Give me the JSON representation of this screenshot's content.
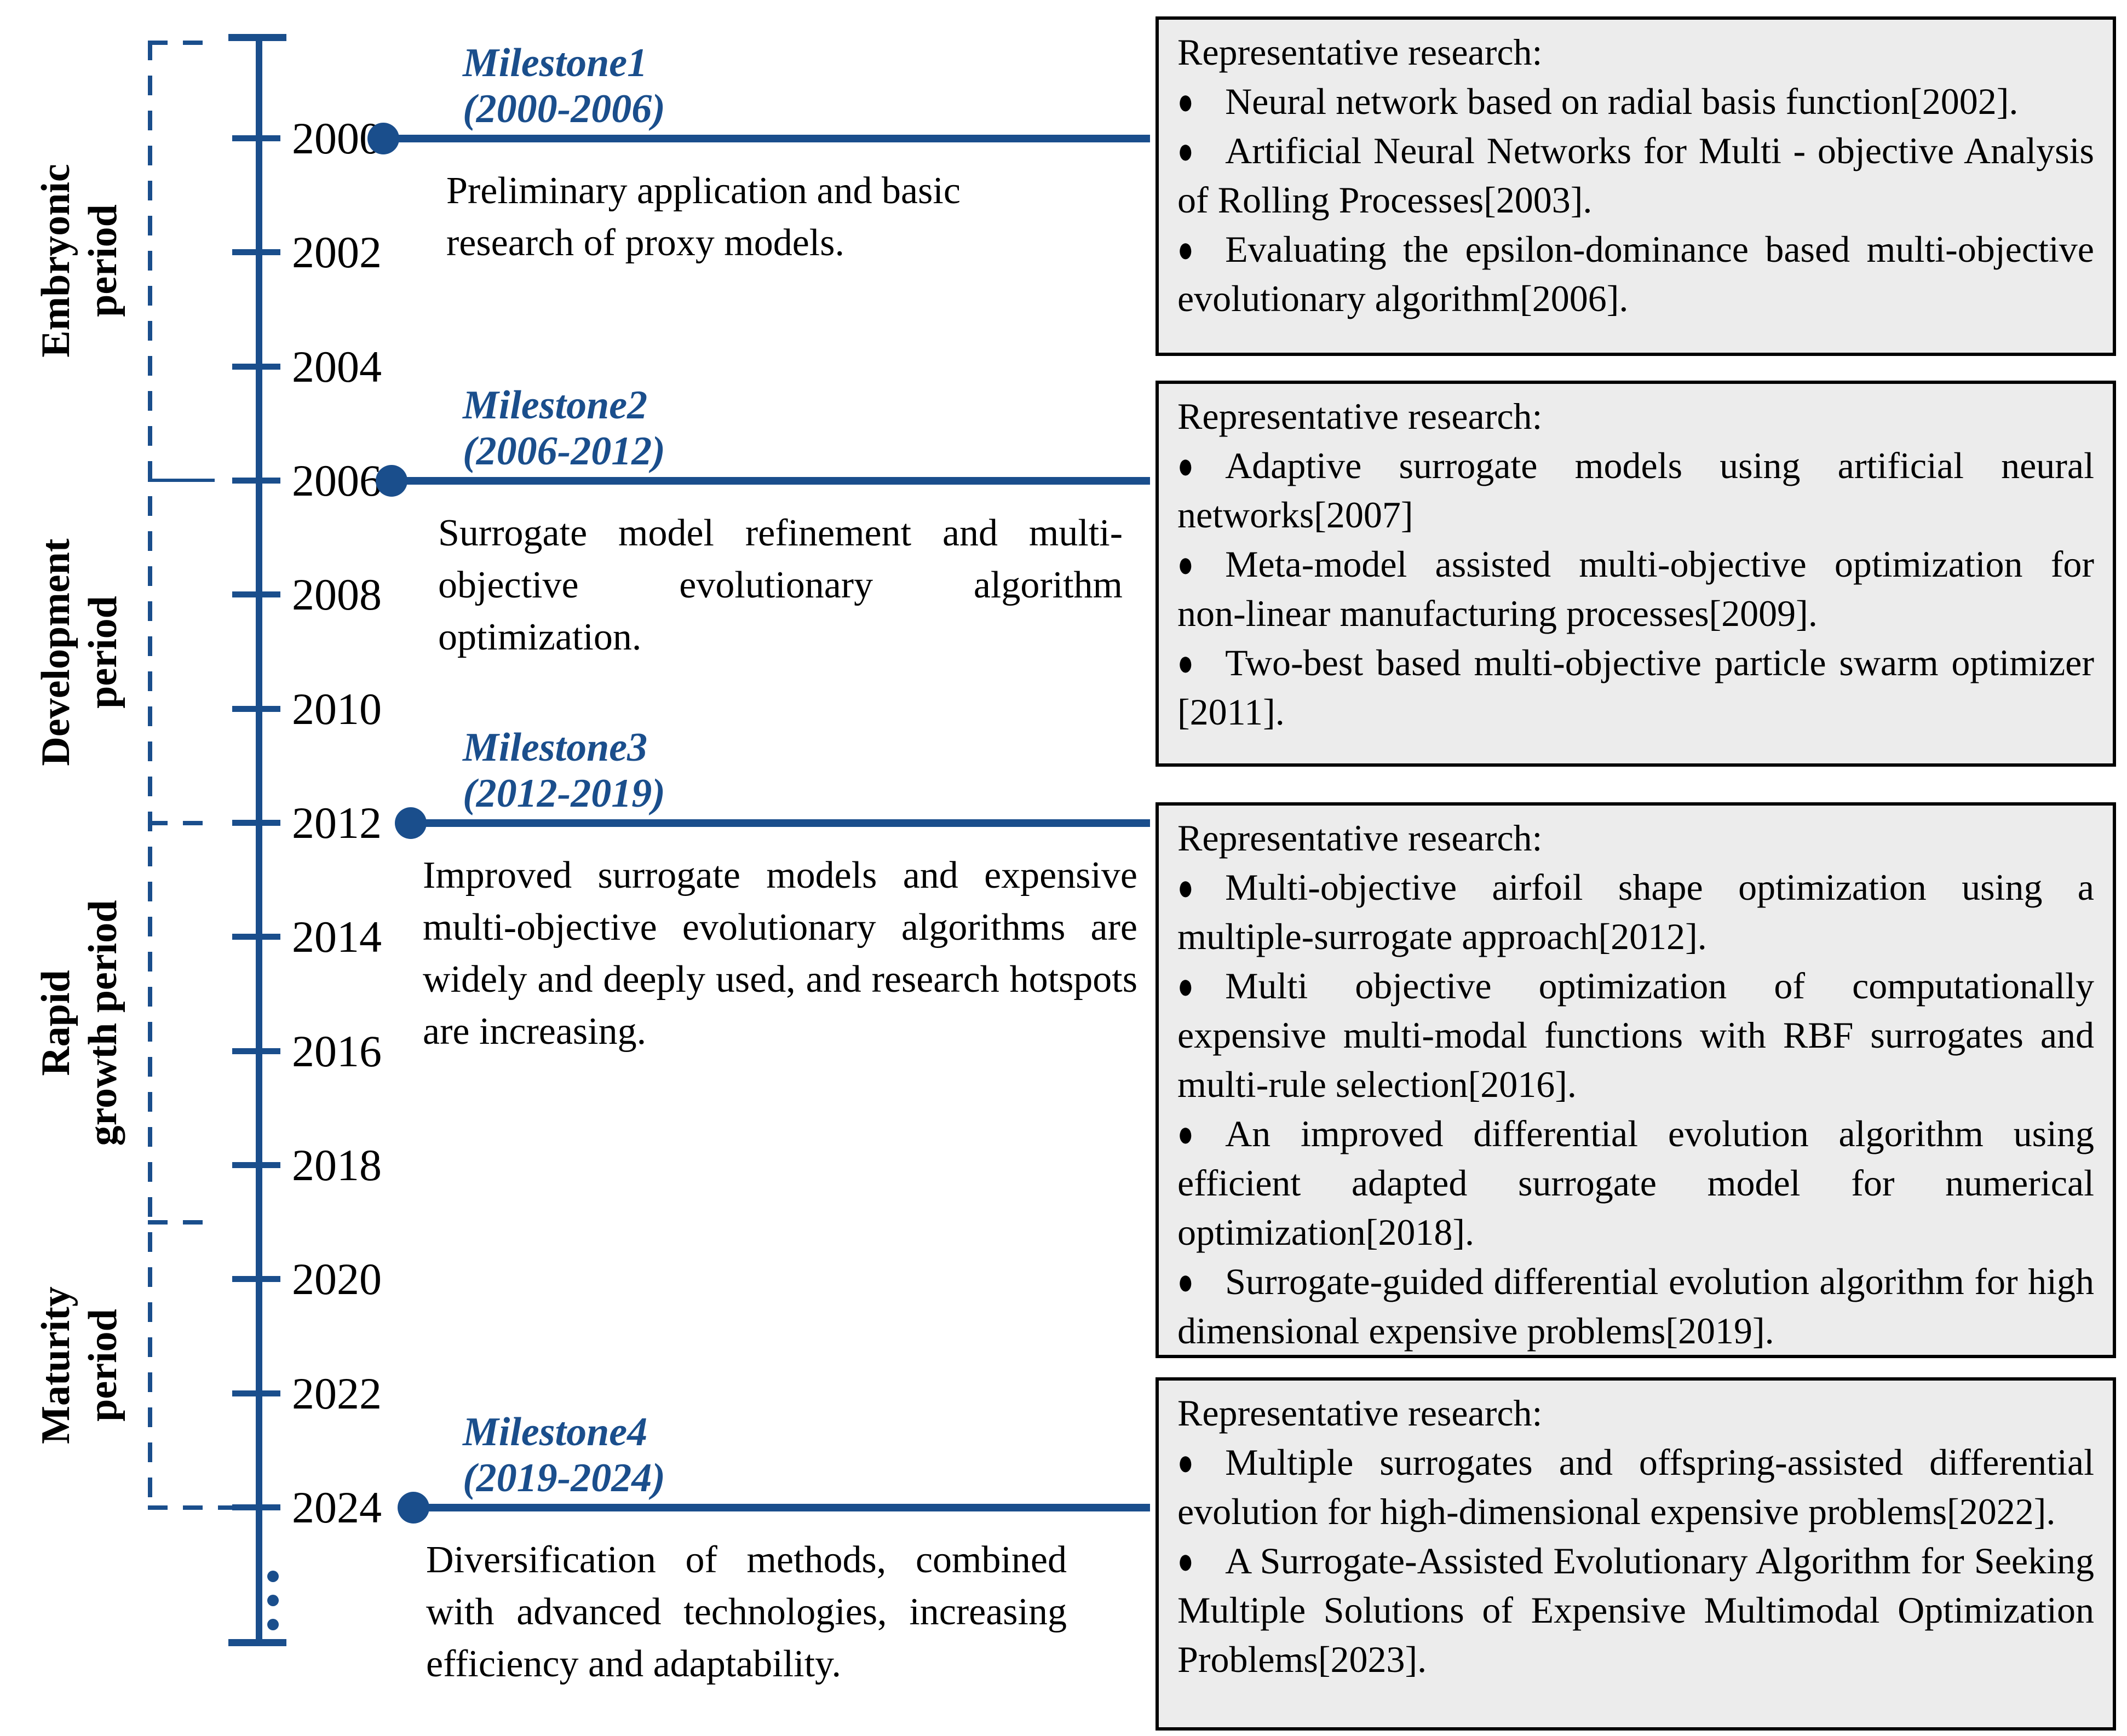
{
  "colors": {
    "accent": "#1a4e8c",
    "box_background": "#ececec",
    "box_border": "#000000",
    "text": "#000000"
  },
  "timeline": {
    "years": [
      "2000",
      "2002",
      "2004",
      "2006",
      "2008",
      "2010",
      "2012",
      "2014",
      "2016",
      "2018",
      "2020",
      "2022",
      "2024"
    ]
  },
  "periods": [
    {
      "line1": "Embryonic",
      "line2": "period",
      "start_year": 2000,
      "end_year": 2006
    },
    {
      "line1": "Development",
      "line2": "period",
      "start_year": 2006,
      "end_year": 2012
    },
    {
      "line1": "Rapid",
      "line2": "growth period",
      "start_year": 2012,
      "end_year": 2019
    },
    {
      "line1": "Maturity",
      "line2": "period",
      "start_year": 2019,
      "end_year": 2024
    }
  ],
  "milestones": [
    {
      "title": "Milestone1",
      "range": "(2000-2006)",
      "year": 2000,
      "description": "Preliminary application and basic research of proxy models."
    },
    {
      "title": "Milestone2",
      "range": "(2006-2012)",
      "year": 2006,
      "description": "Surrogate model refinement and multi-objective evolutionary algorithm optimization."
    },
    {
      "title": "Milestone3",
      "range": "(2012-2019)",
      "year": 2012,
      "description": "Improved surrogate models and expensive multi-objective evolutionary algorithms are widely and deeply used, and research hotspots are increasing."
    },
    {
      "title": "Milestone4",
      "range": "(2019-2024)",
      "year": 2024,
      "description": "Diversification of methods, combined with advanced technologies, increasing efficiency and adaptability."
    }
  ],
  "boxes": [
    {
      "heading": "Representative research:",
      "items": [
        "Neural network based on radial basis function[2002].",
        "Artificial Neural Networks for Multi - objective Analysis of Rolling Processes[2003].",
        "Evaluating the epsilon-dominance based multi-objective evolutionary algorithm[2006]."
      ]
    },
    {
      "heading": "Representative research:",
      "items": [
        "Adaptive surrogate models using artificial neural networks[2007]",
        "Meta-model assisted multi-objective optimization for non-linear manufacturing processes[2009].",
        "Two-best based multi-objective particle swarm optimizer [2011]."
      ]
    },
    {
      "heading": "Representative research:",
      "items": [
        "Multi-objective airfoil shape optimization using a multiple-surrogate approach[2012].",
        "Multi objective optimization of computationally expensive multi-modal functions with RBF surrogates and multi-rule selection[2016].",
        "An improved differential evolution algorithm using efficient adapted surrogate model for numerical optimization[2018].",
        "Surrogate-guided differential evolution algorithm for high dimensional expensive problems[2019]."
      ]
    },
    {
      "heading": "Representative research:",
      "items": [
        "Multiple surrogates and offspring-assisted differential evolution for high-dimensional expensive problems[2022].",
        "A Surrogate-Assisted Evolutionary Algorithm for Seeking Multiple Solutions of Expensive Multimodal Optimization Problems[2023]."
      ]
    }
  ]
}
